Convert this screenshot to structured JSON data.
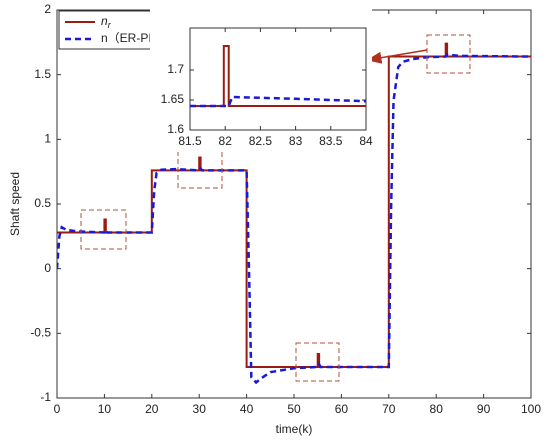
{
  "chart_data": [
    {
      "type": "line",
      "xlabel": "time(k)",
      "ylabel": "Shaft speed",
      "xlim": [
        0,
        100
      ],
      "ylim": [
        -1,
        2
      ],
      "xticks": [
        0,
        10,
        20,
        30,
        40,
        50,
        60,
        70,
        80,
        90,
        100
      ],
      "yticks": [
        -1,
        -0.5,
        0,
        0.5,
        1,
        1.5,
        2
      ],
      "legend": "upper left",
      "series": [
        {
          "name": "nr",
          "color": "#9b1c14",
          "dashed": false,
          "x": [
            0,
            10,
            10,
            10.3,
            10.3,
            20,
            20,
            30,
            30,
            30.3,
            30.3,
            40,
            40,
            55,
            55,
            55.3,
            55.3,
            70,
            70,
            82,
            82,
            82.3,
            82.3,
            100
          ],
          "values": [
            0.28,
            0.28,
            0.38,
            0.38,
            0.28,
            0.28,
            0.76,
            0.76,
            0.86,
            0.86,
            0.76,
            0.76,
            -0.76,
            -0.76,
            -0.66,
            -0.66,
            -0.76,
            -0.76,
            1.64,
            1.64,
            1.74,
            1.74,
            1.64,
            1.64
          ]
        },
        {
          "name": "n（ER-PID）",
          "color": "#1a1ad6",
          "dashed": true,
          "x": [
            0,
            0.5,
            1,
            2,
            4,
            6,
            10,
            10.3,
            10.6,
            20,
            20.5,
            21,
            22,
            25,
            30,
            30.3,
            30.6,
            40,
            40.5,
            41,
            42,
            43,
            45,
            50,
            55,
            55.3,
            55.6,
            70,
            70.5,
            71,
            72,
            73,
            75,
            78,
            82,
            82.3,
            85,
            100
          ],
          "values": [
            0,
            0.25,
            0.32,
            0.3,
            0.29,
            0.285,
            0.28,
            0.3,
            0.28,
            0.28,
            0.6,
            0.74,
            0.765,
            0.77,
            0.76,
            0.775,
            0.76,
            0.76,
            0,
            -0.84,
            -0.88,
            -0.85,
            -0.8,
            -0.77,
            -0.76,
            -0.74,
            -0.76,
            -0.76,
            0.5,
            1.3,
            1.56,
            1.6,
            1.62,
            1.635,
            1.64,
            1.655,
            1.645,
            1.64
          ]
        }
      ]
    },
    {
      "type": "line",
      "xlim": [
        81.5,
        84
      ],
      "ylim": [
        1.6,
        1.77
      ],
      "xticks": [
        81.5,
        82,
        82.5,
        83,
        83.5,
        84
      ],
      "yticks": [
        1.6,
        1.65,
        1.7
      ],
      "series": [
        {
          "color": "#9b1c14",
          "dashed": false,
          "x": [
            81.5,
            81.98,
            81.98,
            82.05,
            82.05,
            84
          ],
          "values": [
            1.64,
            1.64,
            1.74,
            1.74,
            1.64,
            1.64
          ]
        },
        {
          "color": "#1a1ad6",
          "dashed": true,
          "x": [
            81.5,
            82.05,
            82.1,
            83,
            84
          ],
          "values": [
            1.64,
            1.64,
            1.655,
            1.652,
            1.648
          ]
        }
      ]
    }
  ]
}
